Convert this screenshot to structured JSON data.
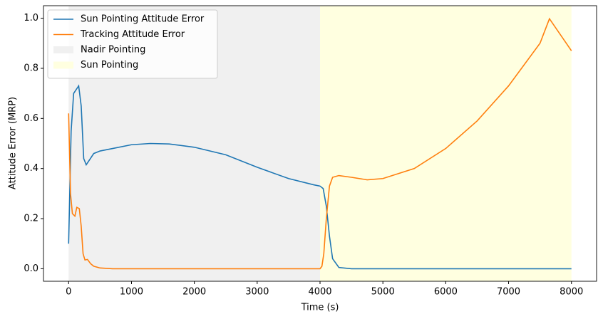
{
  "chart_data": {
    "type": "line",
    "xlabel": "Time (s)",
    "ylabel": "Attitude Error (MRP)",
    "xlim": [
      -400,
      8400
    ],
    "ylim": [
      -0.05,
      1.05
    ],
    "xticks": [
      0,
      1000,
      2000,
      3000,
      4000,
      5000,
      6000,
      7000,
      8000
    ],
    "yticks": [
      {
        "value": 0,
        "label": "0.0"
      },
      {
        "value": 0.2,
        "label": "0.2"
      },
      {
        "value": 0.4,
        "label": "0.4"
      },
      {
        "value": 0.6,
        "label": "0.6"
      },
      {
        "value": 0.8,
        "label": "0.8"
      },
      {
        "value": 1,
        "label": "1.0"
      }
    ],
    "legend": "upper left",
    "series": [
      {
        "name": "Sun Pointing Attitude Error",
        "color": "#1f77b4",
        "x": [
          0,
          40,
          80,
          160,
          200,
          240,
          280,
          320,
          400,
          500,
          700,
          1000,
          1300,
          1600,
          2000,
          2500,
          3000,
          3500,
          3900,
          4000,
          4050,
          4100,
          4150,
          4200,
          4300,
          4500,
          8000
        ],
        "values": [
          0.1,
          0.55,
          0.7,
          0.73,
          0.65,
          0.44,
          0.415,
          0.43,
          0.46,
          0.47,
          0.48,
          0.495,
          0.5,
          0.498,
          0.485,
          0.455,
          0.405,
          0.36,
          0.335,
          0.33,
          0.32,
          0.25,
          0.13,
          0.04,
          0.005,
          0,
          0
        ]
      },
      {
        "name": "Tracking Attitude Error",
        "color": "#ff7f0e",
        "x": [
          0,
          30,
          60,
          100,
          130,
          170,
          200,
          230,
          260,
          300,
          350,
          400,
          500,
          700,
          4000,
          4030,
          4060,
          4100,
          4150,
          4200,
          4300,
          4500,
          4750,
          5000,
          5500,
          6000,
          6500,
          7000,
          7500,
          7650,
          8000
        ],
        "values": [
          0.62,
          0.3,
          0.22,
          0.21,
          0.245,
          0.24,
          0.17,
          0.06,
          0.035,
          0.037,
          0.02,
          0.01,
          0.003,
          0,
          0,
          0.01,
          0.06,
          0.2,
          0.33,
          0.365,
          0.372,
          0.365,
          0.355,
          0.36,
          0.4,
          0.48,
          0.59,
          0.73,
          0.9,
          0.998,
          0.87
        ]
      }
    ],
    "spans": [
      {
        "name": "Nadir Pointing",
        "color": "#f0f0f0",
        "x": [
          0,
          4000
        ]
      },
      {
        "name": "Sun Pointing",
        "color": "#ffffe0",
        "x": [
          4000,
          8000
        ]
      }
    ]
  }
}
